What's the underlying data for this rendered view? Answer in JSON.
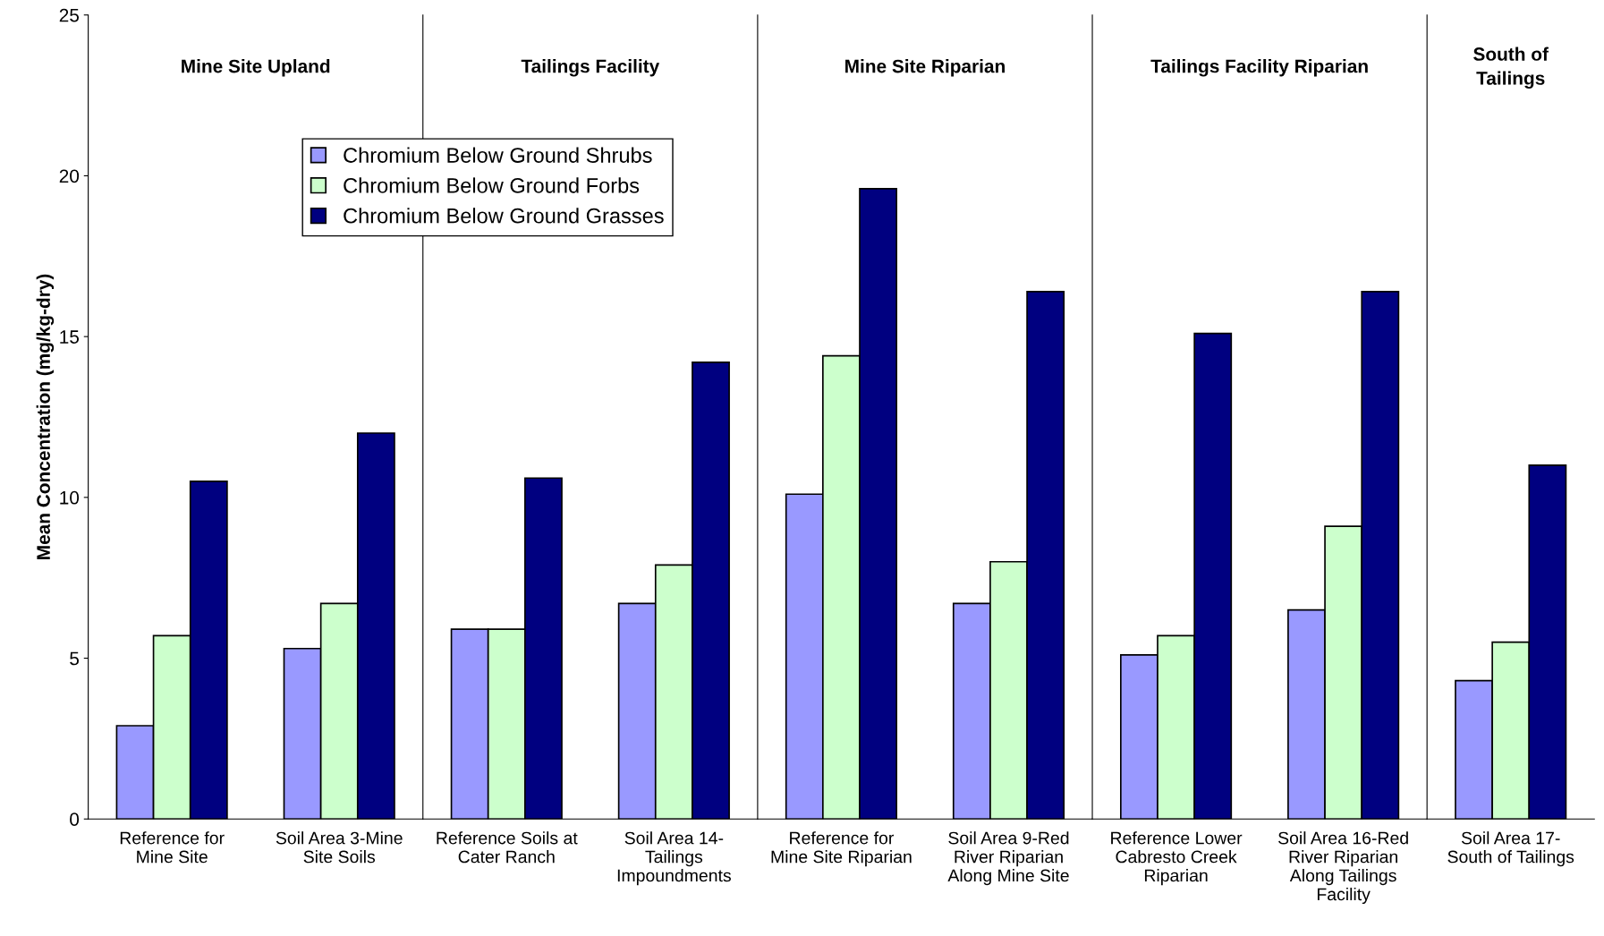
{
  "chart_data": [
    {
      "type": "bar",
      "title": "Mine Site Upland",
      "ylabel": "Mean Concentration (mg/kg-dry)",
      "categories": [
        "Reference for\nMine Site",
        "Soil Area 3-Mine\nSite Soils"
      ],
      "series": [
        {
          "name": "Chromium Below Ground Shrubs",
          "color": "#9999ff",
          "values": [
            2.9,
            5.3
          ]
        },
        {
          "name": "Chromium Below Ground Forbs",
          "color": "#ccffcc",
          "values": [
            5.7,
            6.7
          ]
        },
        {
          "name": "Chromium Below Ground Grasses",
          "color": "#000080",
          "values": [
            10.5,
            12.0
          ]
        }
      ],
      "ylim": [
        0,
        25
      ],
      "yticks": [
        0,
        5,
        10,
        15,
        20,
        25
      ],
      "legend": "top right"
    },
    {
      "type": "bar",
      "title": "Tailings Facility",
      "categories": [
        "Reference Soils at\nCater Ranch",
        "Soil Area 14-\nTailings\nImpoundments"
      ],
      "series": [
        {
          "color": "#9999ff",
          "values": [
            5.9,
            6.7
          ]
        },
        {
          "color": "#ccffcc",
          "values": [
            5.9,
            7.9
          ]
        },
        {
          "color": "#000080",
          "values": [
            10.6,
            14.2
          ]
        }
      ],
      "ylim": [
        0,
        25
      ],
      "tick_labels": "x"
    },
    {
      "type": "bar",
      "title": "Mine Site Riparian",
      "categories": [
        "Reference for\nMine Site Riparian",
        "Soil Area 9-Red\nRiver Riparian\nAlong Mine Site"
      ],
      "series": [
        {
          "color": "#9999ff",
          "values": [
            10.1,
            6.7
          ]
        },
        {
          "color": "#ccffcc",
          "values": [
            14.4,
            8.0
          ]
        },
        {
          "color": "#000080",
          "values": [
            19.6,
            16.4
          ]
        }
      ],
      "ylim": [
        0,
        25
      ],
      "tick_labels": "x"
    },
    {
      "type": "bar",
      "title": "Tailings Facility Riparian",
      "categories": [
        "Reference Lower\nCabresto Creek\nRiparian",
        "Soil Area 16-Red\nRiver Riparian\nAlong Tailings\nFacility"
      ],
      "series": [
        {
          "color": "#9999ff",
          "values": [
            5.1,
            6.5
          ]
        },
        {
          "color": "#ccffcc",
          "values": [
            5.7,
            9.1
          ]
        },
        {
          "color": "#000080",
          "values": [
            15.1,
            16.4
          ]
        }
      ],
      "ylim": [
        0,
        25
      ],
      "tick_labels": "x"
    },
    {
      "type": "bar",
      "title": "South of\nTailings",
      "categories": [
        "Soil Area 17-\nSouth of Tailings"
      ],
      "series": [
        {
          "color": "#9999ff",
          "values": [
            4.3
          ]
        },
        {
          "color": "#ccffcc",
          "values": [
            5.5
          ]
        },
        {
          "color": "#000080",
          "values": [
            11.0
          ]
        }
      ],
      "ylim": [
        0,
        25
      ],
      "tick_labels": "x"
    }
  ]
}
